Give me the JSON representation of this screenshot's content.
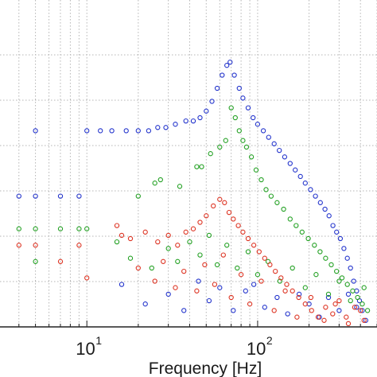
{
  "chart_data": {
    "type": "scatter",
    "xlabel": "Frequency [Hz]",
    "ylabel": "",
    "title": "",
    "xscale": "log",
    "xlim": [
      3.1,
      500
    ],
    "ylim": [
      0,
      100
    ],
    "grid": true,
    "grid_style": "dotted",
    "x_tick_labels": [
      {
        "value": 10,
        "base": "10",
        "exp": "1"
      },
      {
        "value": 100,
        "base": "10",
        "exp": "2"
      }
    ],
    "series": [
      {
        "color": "#2233cc",
        "marker": "circle-open",
        "points": [
          [
            4,
            40
          ],
          [
            5,
            60
          ],
          [
            5,
            40
          ],
          [
            7,
            40
          ],
          [
            9,
            40
          ],
          [
            10,
            60
          ],
          [
            12,
            60
          ],
          [
            14,
            60
          ],
          [
            17,
            60
          ],
          [
            20,
            60
          ],
          [
            23,
            60
          ],
          [
            26,
            61
          ],
          [
            29,
            61
          ],
          [
            33,
            62
          ],
          [
            38,
            63
          ],
          [
            42,
            63
          ],
          [
            46,
            64
          ],
          [
            50,
            66
          ],
          [
            54,
            69
          ],
          [
            58,
            73
          ],
          [
            62,
            77
          ],
          [
            66,
            80
          ],
          [
            69,
            81
          ],
          [
            73,
            77
          ],
          [
            78,
            73
          ],
          [
            82,
            70
          ],
          [
            88,
            67
          ],
          [
            94,
            64
          ],
          [
            100,
            62
          ],
          [
            108,
            60
          ],
          [
            116,
            58
          ],
          [
            125,
            56
          ],
          [
            134,
            54
          ],
          [
            144,
            52
          ],
          [
            155,
            50
          ],
          [
            166,
            48
          ],
          [
            178,
            46
          ],
          [
            190,
            44
          ],
          [
            204,
            42
          ],
          [
            218,
            40
          ],
          [
            233,
            38
          ],
          [
            248,
            36
          ],
          [
            262,
            34
          ],
          [
            276,
            31
          ],
          [
            290,
            29
          ],
          [
            305,
            27
          ],
          [
            320,
            24
          ],
          [
            335,
            21
          ],
          [
            350,
            18
          ],
          [
            365,
            14
          ],
          [
            380,
            11
          ],
          [
            395,
            8
          ],
          [
            410,
            5
          ],
          [
            430,
            2
          ],
          [
            16,
            13
          ],
          [
            22,
            7
          ],
          [
            30,
            10
          ],
          [
            37,
            5
          ],
          [
            45,
            14
          ],
          [
            52,
            8
          ],
          [
            60,
            12
          ],
          [
            72,
            5
          ],
          [
            85,
            11
          ],
          [
            95,
            13
          ],
          [
            110,
            6
          ],
          [
            130,
            9
          ],
          [
            150,
            4
          ],
          [
            175,
            10
          ],
          [
            200,
            7
          ],
          [
            230,
            3
          ],
          [
            260,
            9
          ],
          [
            300,
            5
          ],
          [
            340,
            10
          ],
          [
            380,
            6
          ]
        ]
      },
      {
        "color": "#22a022",
        "marker": "circle-open",
        "points": [
          [
            4,
            30
          ],
          [
            5,
            30
          ],
          [
            5,
            20
          ],
          [
            7,
            30
          ],
          [
            9,
            30
          ],
          [
            10,
            30
          ],
          [
            20,
            40
          ],
          [
            25,
            44
          ],
          [
            27,
            45
          ],
          [
            35,
            43
          ],
          [
            44,
            49
          ],
          [
            47,
            49
          ],
          [
            53,
            53
          ],
          [
            60,
            55
          ],
          [
            65,
            57
          ],
          [
            70,
            67
          ],
          [
            74,
            64
          ],
          [
            78,
            60
          ],
          [
            82,
            57
          ],
          [
            86,
            55
          ],
          [
            92,
            52
          ],
          [
            98,
            48
          ],
          [
            105,
            45
          ],
          [
            112,
            42
          ],
          [
            120,
            40
          ],
          [
            130,
            38
          ],
          [
            142,
            36
          ],
          [
            155,
            33
          ],
          [
            168,
            31
          ],
          [
            182,
            29
          ],
          [
            198,
            27
          ],
          [
            215,
            25
          ],
          [
            232,
            23
          ],
          [
            250,
            21
          ],
          [
            270,
            19
          ],
          [
            290,
            17
          ],
          [
            312,
            15
          ],
          [
            335,
            13
          ],
          [
            360,
            11
          ],
          [
            385,
            9
          ],
          [
            410,
            7
          ],
          [
            440,
            5
          ],
          [
            15,
            26
          ],
          [
            18,
            21
          ],
          [
            24,
            18
          ],
          [
            30,
            24
          ],
          [
            34,
            20
          ],
          [
            40,
            26
          ],
          [
            46,
            22
          ],
          [
            52,
            28
          ],
          [
            58,
            19
          ],
          [
            66,
            25
          ],
          [
            76,
            18
          ],
          [
            88,
            23
          ],
          [
            100,
            16
          ],
          [
            115,
            20
          ],
          [
            135,
            14
          ],
          [
            160,
            18
          ],
          [
            190,
            12
          ],
          [
            220,
            16
          ],
          [
            260,
            10
          ],
          [
            300,
            14
          ],
          [
            350,
            8
          ],
          [
            420,
            12
          ]
        ]
      },
      {
        "color": "#dd3322",
        "marker": "circle-open",
        "points": [
          [
            4,
            25
          ],
          [
            5,
            25
          ],
          [
            7,
            20
          ],
          [
            9,
            25
          ],
          [
            10,
            15
          ],
          [
            15,
            31
          ],
          [
            16,
            28
          ],
          [
            18,
            27
          ],
          [
            22,
            29
          ],
          [
            26,
            26
          ],
          [
            30,
            28
          ],
          [
            34,
            25
          ],
          [
            38,
            29
          ],
          [
            42,
            30
          ],
          [
            46,
            32
          ],
          [
            50,
            34
          ],
          [
            55,
            37
          ],
          [
            60,
            39
          ],
          [
            64,
            38
          ],
          [
            68,
            35
          ],
          [
            72,
            33
          ],
          [
            77,
            31
          ],
          [
            82,
            29
          ],
          [
            88,
            27
          ],
          [
            95,
            25
          ],
          [
            102,
            23
          ],
          [
            110,
            21
          ],
          [
            118,
            19
          ],
          [
            127,
            17
          ],
          [
            137,
            15
          ],
          [
            148,
            13
          ],
          [
            160,
            11
          ],
          [
            174,
            9
          ],
          [
            190,
            7
          ],
          [
            207,
            5
          ],
          [
            226,
            3
          ],
          [
            250,
            6
          ],
          [
            275,
            4
          ],
          [
            300,
            8
          ],
          [
            330,
            3
          ],
          [
            370,
            6
          ],
          [
            420,
            2
          ],
          [
            20,
            18
          ],
          [
            25,
            14
          ],
          [
            28,
            20
          ],
          [
            33,
            12
          ],
          [
            37,
            17
          ],
          [
            44,
            11
          ],
          [
            49,
            19
          ],
          [
            56,
            13
          ],
          [
            63,
            22
          ],
          [
            70,
            9
          ],
          [
            80,
            16
          ],
          [
            90,
            7
          ],
          [
            105,
            14
          ],
          [
            125,
            5
          ],
          [
            145,
            11
          ],
          [
            170,
            3
          ],
          [
            205,
            9
          ],
          [
            245,
            2
          ],
          [
            285,
            7
          ],
          [
            340,
            1
          ],
          [
            400,
            5
          ]
        ]
      }
    ]
  }
}
